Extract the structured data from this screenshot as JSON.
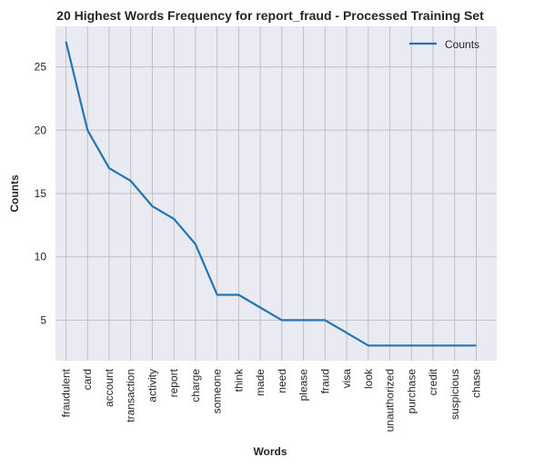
{
  "chart_data": {
    "type": "line",
    "title": "20 Highest Words Frequency for report_fraud - Processed Training Set",
    "xlabel": "Words",
    "ylabel": "Counts",
    "categories": [
      "fraudulent",
      "card",
      "account",
      "transaction",
      "activity",
      "report",
      "charge",
      "someone",
      "think",
      "made",
      "need",
      "please",
      "fraud",
      "visa",
      "look",
      "unauthorized",
      "purchase",
      "credit",
      "suspicious",
      "chase"
    ],
    "series": [
      {
        "name": "Counts",
        "values": [
          27,
          20,
          17,
          16,
          14,
          13,
          11,
          7,
          7,
          6,
          5,
          5,
          5,
          4,
          3,
          3,
          3,
          3,
          3,
          3
        ]
      }
    ],
    "yticks": [
      5,
      10,
      15,
      20,
      25
    ],
    "ylim": [
      1.8,
      28.2
    ],
    "grid": true,
    "legend_position": "top-right",
    "colors": {
      "line": "#1f77b4",
      "plot_bg": "#eaeaf2",
      "grid": "#c0c0c0"
    }
  }
}
